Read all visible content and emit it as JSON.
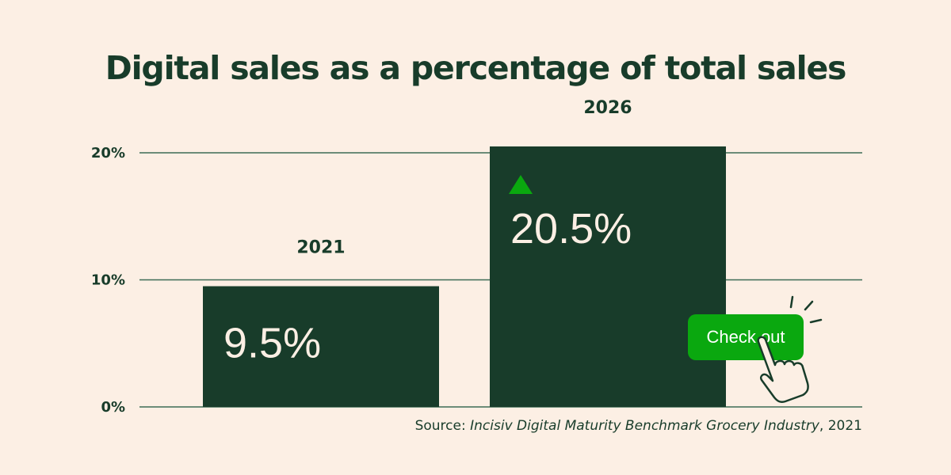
{
  "chart_data": {
    "type": "bar",
    "title": "Digital sales as a percentage of total sales",
    "categories": [
      "2021",
      "2026"
    ],
    "values": [
      9.5,
      20.5
    ],
    "data_labels": [
      "9.5%",
      "20.5%"
    ],
    "yticks": [
      0,
      10,
      20
    ],
    "ytick_labels": [
      "0%",
      "10%",
      "20%"
    ],
    "ylim": [
      0,
      20.5
    ],
    "grid": true,
    "xlabel": "",
    "ylabel": "",
    "colors": {
      "bar": "#183c2a",
      "background": "#fcefe4",
      "accent": "#0aa80f",
      "label": "#fcefe4"
    },
    "annotation": {
      "icon": "triangle-up-icon",
      "target": "2026"
    }
  },
  "source": {
    "prefix": "Source: ",
    "name": "Incisiv Digital Maturity Benchmark Grocery Industry",
    "suffix": ", 2021"
  },
  "button": {
    "label": "Check out",
    "icon": "pointing-hand-icon"
  }
}
